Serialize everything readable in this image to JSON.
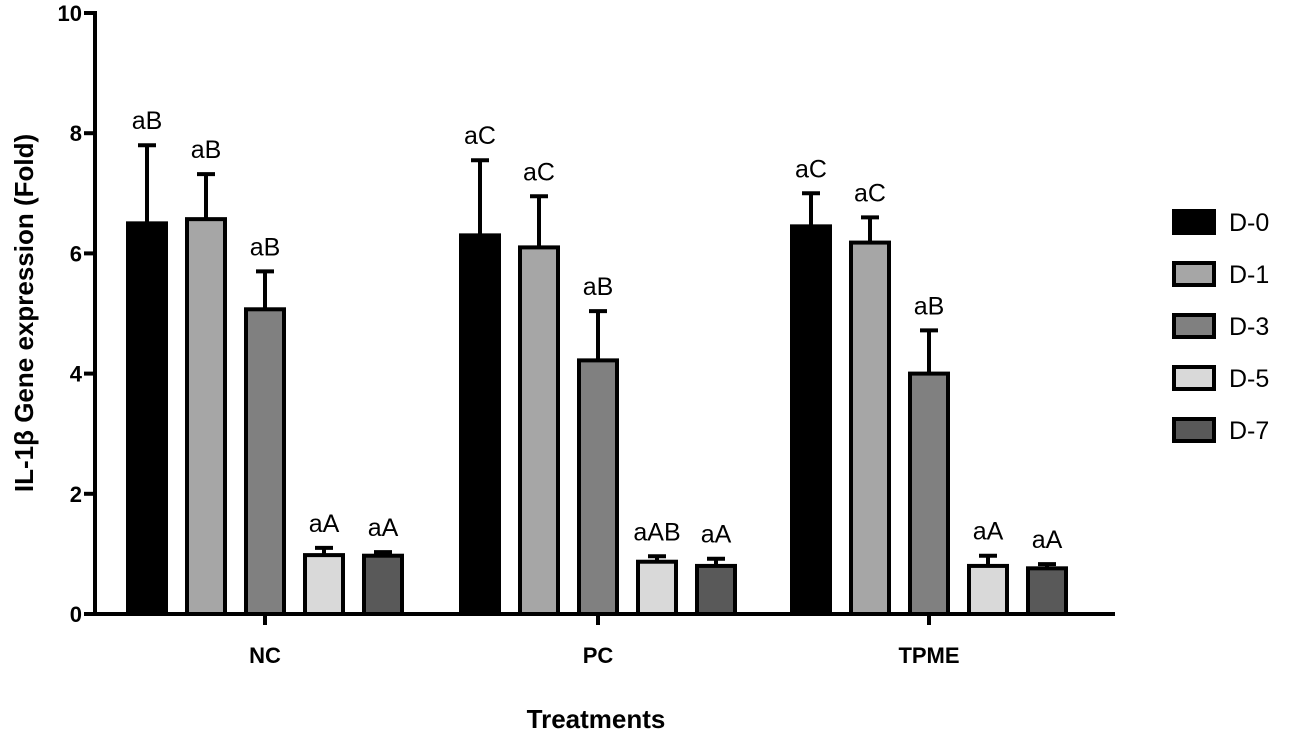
{
  "chart_data": {
    "type": "bar",
    "title": "",
    "xlabel": "Treatments",
    "ylabel": "IL-1β Gene expression (Fold)",
    "ylim": [
      0,
      10
    ],
    "yticks": [
      "0",
      "2",
      "4",
      "6",
      "8",
      "10"
    ],
    "categories": [
      "NC",
      "PC",
      "TPME"
    ],
    "legend_position": "right",
    "grid": false,
    "series": [
      {
        "name": "D-0",
        "color": "#000000",
        "values": [
          6.5,
          6.3,
          6.45
        ],
        "errors": [
          1.3,
          1.25,
          0.55
        ],
        "labels": [
          "aB",
          "aC",
          "aC"
        ]
      },
      {
        "name": "D-1",
        "color": "#a6a6a6",
        "values": [
          6.57,
          6.1,
          6.18
        ],
        "errors": [
          0.75,
          0.85,
          0.42
        ],
        "labels": [
          "aB",
          "aC",
          "aC"
        ]
      },
      {
        "name": "D-3",
        "color": "#808080",
        "values": [
          5.07,
          4.22,
          4.0
        ],
        "errors": [
          0.63,
          0.82,
          0.72
        ],
        "labels": [
          "aB",
          "aB",
          "aB"
        ]
      },
      {
        "name": "D-5",
        "color": "#d9d9d9",
        "values": [
          0.98,
          0.87,
          0.8
        ],
        "errors": [
          0.12,
          0.09,
          0.17
        ],
        "labels": [
          "aA",
          "aAB",
          "aA"
        ]
      },
      {
        "name": "D-7",
        "color": "#595959",
        "values": [
          0.97,
          0.8,
          0.76
        ],
        "errors": [
          0.06,
          0.12,
          0.07
        ],
        "labels": [
          "aA",
          "aA",
          "aA"
        ]
      }
    ]
  }
}
